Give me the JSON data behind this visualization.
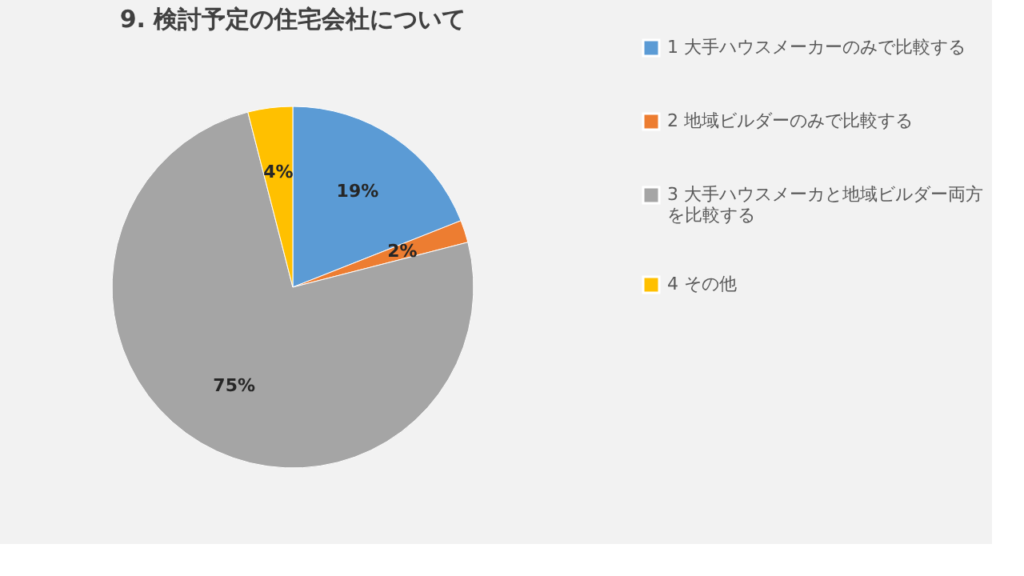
{
  "chart_data": {
    "type": "pie",
    "title": "9. 検討予定の住宅会社について",
    "categories": [
      "1 大手ハウスメーカーのみで比較する",
      "2 地域ビルダーのみで比較する",
      "3 大手ハウスメーカと地域ビルダー両方を比較する",
      "4 その他"
    ],
    "values": [
      19,
      2,
      75,
      4
    ],
    "colors": [
      "#5b9bd5",
      "#ed7d31",
      "#a5a5a5",
      "#ffc000"
    ],
    "value_labels": [
      "19%",
      "2%",
      "75%",
      "4%"
    ],
    "legend": "right"
  }
}
